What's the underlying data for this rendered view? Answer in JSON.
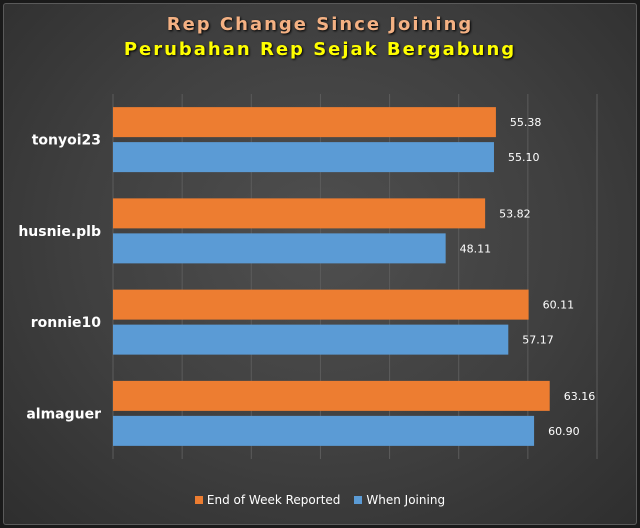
{
  "chart_data": {
    "type": "bar",
    "orientation": "horizontal",
    "title": "Rep Change Since Joining",
    "subtitle": "Perubahan Rep Sejak Bergabung",
    "categories": [
      "tonyoi23",
      "husnie.plb",
      "ronnie10",
      "almaguer"
    ],
    "series": [
      {
        "name": "End of Week Reported",
        "color": "#ed7d31",
        "values": [
          55.38,
          53.82,
          60.11,
          63.16
        ],
        "labels": [
          "55.38",
          "53.82",
          "60.11",
          "63.16"
        ]
      },
      {
        "name": "When Joining",
        "color": "#5b9bd5",
        "values": [
          55.1,
          48.11,
          57.17,
          60.9
        ],
        "labels": [
          "55.10",
          "48.11",
          "57.17",
          "60.90"
        ]
      }
    ],
    "xlim": [
      0,
      70
    ],
    "grid": true,
    "legend_position": "bottom"
  }
}
